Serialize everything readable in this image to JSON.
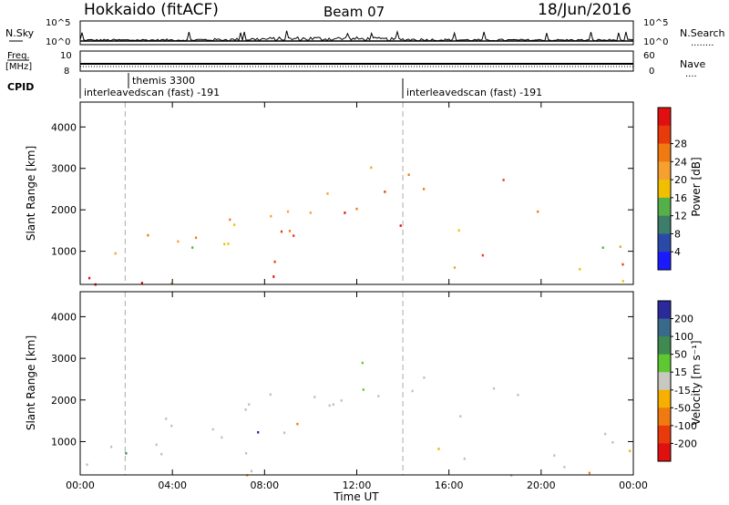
{
  "header": {
    "title": "Hokkaido (fitACF)",
    "beam": "Beam 07",
    "date": "18/Jun/2016"
  },
  "strips": {
    "nsky_label": "N.Sky",
    "nsearch_label": "N.Search",
    "nsearch_dots": "........",
    "nsky_ticks": [
      "10^5",
      "10^0"
    ],
    "freq_label_1": "Freq.",
    "freq_label_2": "[MHz]",
    "freq_ticks": [
      "10",
      "8"
    ],
    "nave_ticks": [
      "60",
      "0"
    ],
    "nave_label": "Nave",
    "nave_dots": "....",
    "cpid_label": "CPID",
    "cpid_entries": [
      {
        "label": "themis 3300",
        "start_hour": 1.95
      },
      {
        "label": "interleavedscan (fast) -191",
        "start_hour": 0.0
      },
      {
        "label": "interleavedscan (fast) -191",
        "start_hour": 14.0
      }
    ]
  },
  "chart_data": [
    {
      "type": "heatmap",
      "name": "power",
      "ylabel": "Slant Range [km]",
      "xlabel": "Time UT",
      "x_ticks": [
        "00:00",
        "04:00",
        "08:00",
        "12:00",
        "16:00",
        "20:00",
        "00:00"
      ],
      "x_tick_hours": [
        0,
        4,
        8,
        12,
        16,
        20,
        24
      ],
      "y_ticks": [
        1000,
        2000,
        3000,
        4000
      ],
      "xlim_hours": [
        0,
        24
      ],
      "ylim_km": [
        200,
        4600
      ],
      "colorbar_label": "Power [dB]",
      "colorbar_ticks": [
        4,
        8,
        12,
        16,
        20,
        24,
        28
      ],
      "colors": [
        "#1a1aff",
        "#2a4aaa",
        "#3d7d6a",
        "#55b04a",
        "#f0c000",
        "#f5a030",
        "#f07a10",
        "#e83a0a",
        "#e01010"
      ],
      "vertical_markers_hours": [
        1.95,
        14.0
      ]
    },
    {
      "type": "heatmap",
      "name": "velocity",
      "ylabel": "Slant Range [km]",
      "xlabel": "Time UT",
      "x_ticks": [
        "00:00",
        "04:00",
        "08:00",
        "12:00",
        "16:00",
        "20:00",
        "00:00"
      ],
      "x_tick_hours": [
        0,
        4,
        8,
        12,
        16,
        20,
        24
      ],
      "y_ticks": [
        1000,
        2000,
        3000,
        4000
      ],
      "xlim_hours": [
        0,
        24
      ],
      "ylim_km": [
        200,
        4600
      ],
      "colorbar_label": "Velocity [m s⁻¹]",
      "colorbar_ticks": [
        "200",
        "100",
        "50",
        "15",
        "-15",
        "-50",
        "-100",
        "-200"
      ],
      "colors": [
        "#2a2a9a",
        "#3a6a8a",
        "#3f8a50",
        "#5ec832",
        "#c8c8c0",
        "#f5b000",
        "#f07a10",
        "#e83a0a",
        "#e01010"
      ],
      "ground_scatter_color": "#c0c0b8",
      "vertical_markers_hours": [
        1.95,
        14.0
      ]
    }
  ]
}
